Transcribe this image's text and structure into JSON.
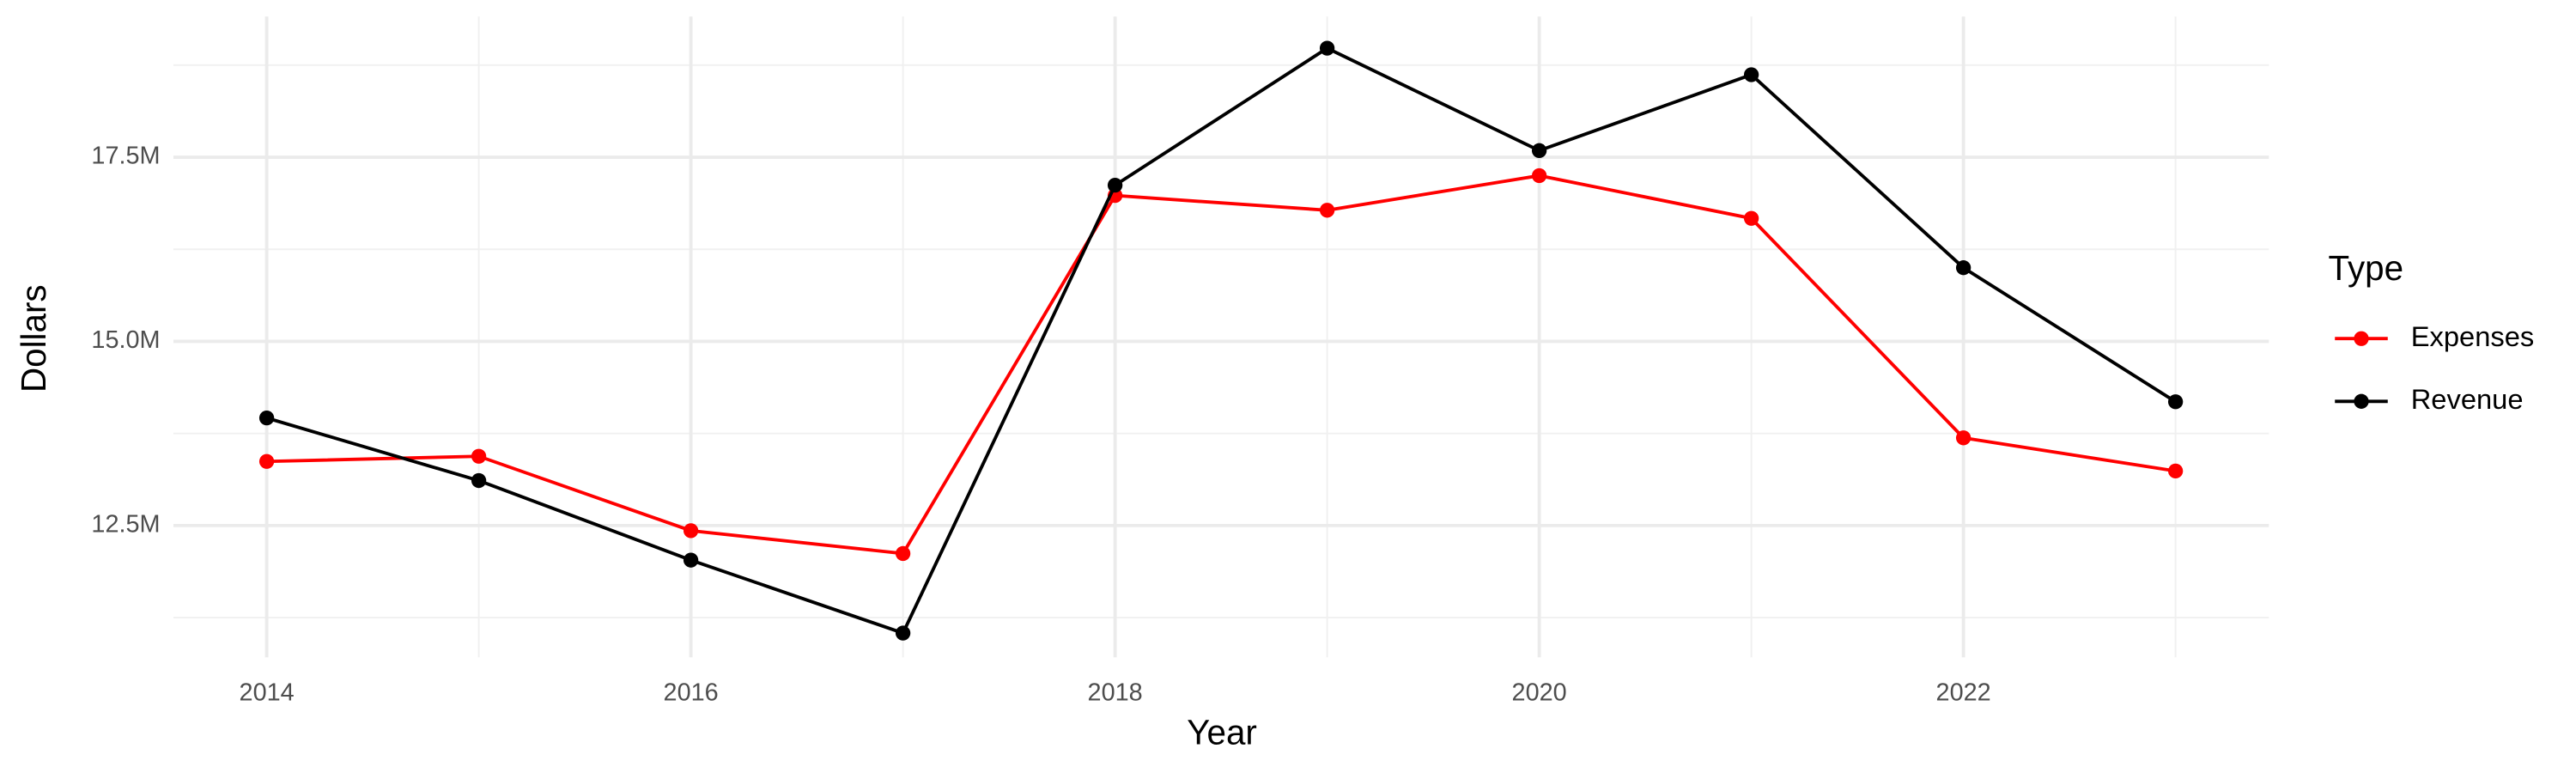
{
  "chart_data": {
    "type": "line",
    "x_label": "Year",
    "y_label": "Dollars",
    "legend_title": "Type",
    "legend_position": "right",
    "grid": true,
    "x": [
      2014,
      2015,
      2016,
      2017,
      2018,
      2019,
      2020,
      2021,
      2022,
      2023
    ],
    "series": [
      {
        "name": "Expenses",
        "color": "#ff0000",
        "values": [
          13370000,
          13440000,
          12430000,
          12120000,
          16980000,
          16780000,
          17250000,
          16670000,
          13690000,
          13240000
        ]
      },
      {
        "name": "Revenue",
        "color": "#000000",
        "values": [
          13960000,
          13110000,
          12030000,
          11040000,
          17120000,
          18980000,
          17590000,
          18620000,
          16000000,
          14180000
        ]
      }
    ],
    "xlim": [
      2013.56,
      2023.44
    ],
    "xticks": [
      2014,
      2016,
      2018,
      2020,
      2022
    ],
    "x_minor_ticks": [
      2015,
      2017,
      2019,
      2021,
      2023
    ],
    "ylim": [
      10710000,
      19410000
    ],
    "yticks": [
      {
        "value": 12500000,
        "label": "12.5M"
      },
      {
        "value": 15000000,
        "label": "15.0M"
      },
      {
        "value": 17500000,
        "label": "17.5M"
      }
    ],
    "y_minor_ticks": [
      11250000,
      13750000,
      16250000,
      18750000
    ]
  }
}
